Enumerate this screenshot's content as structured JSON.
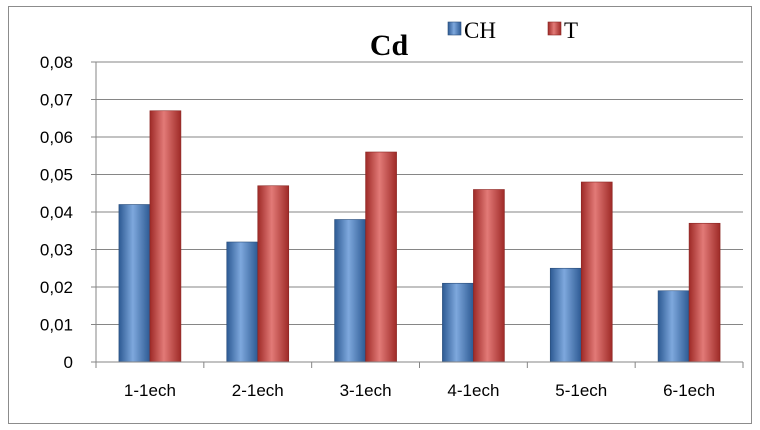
{
  "chart_data": {
    "type": "bar",
    "title": "Cd",
    "categories": [
      "1-1ech",
      "2-1ech",
      "3-1ech",
      "4-1ech",
      "5-1ech",
      "6-1ech"
    ],
    "series": [
      {
        "name": "CH",
        "values": [
          0.042,
          0.032,
          0.038,
          0.021,
          0.025,
          0.019
        ]
      },
      {
        "name": "T",
        "values": [
          0.067,
          0.047,
          0.056,
          0.046,
          0.048,
          0.037
        ]
      }
    ],
    "ylim": [
      0,
      0.08
    ],
    "yticks": [
      "0",
      "0,01",
      "0,02",
      "0,03",
      "0,04",
      "0,05",
      "0,06",
      "0,07",
      "0,08"
    ],
    "grid": true,
    "legend_position": "top",
    "colors": {
      "CH": "#4f81bd",
      "T": "#c0504d",
      "grid": "#868686"
    }
  }
}
